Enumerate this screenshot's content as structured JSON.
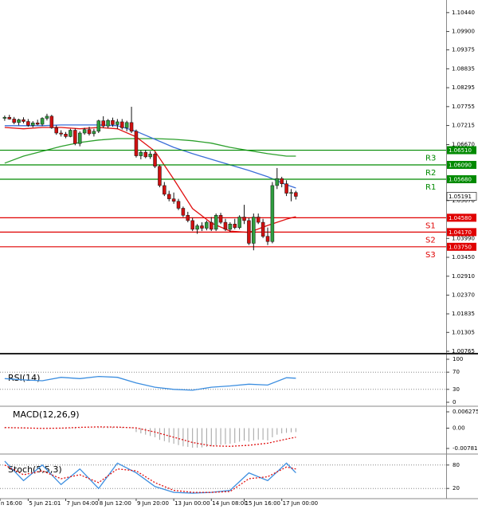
{
  "chart_data": [
    {
      "type": "candlestick",
      "xlim": [
        -1,
        94
      ],
      "xticks": [
        {
          "value": -1,
          "label": "n 16:00"
        },
        {
          "value": 5,
          "label": "5 Jun 21:01"
        },
        {
          "value": 13,
          "label": "7 Jun 04:00"
        },
        {
          "value": 20,
          "label": "8 Jun 12:00"
        },
        {
          "value": 28,
          "label": "9 Jun 20:00"
        },
        {
          "value": 36,
          "label": "13 Jun 00:00"
        },
        {
          "value": 44,
          "label": "14 Jun 08:00"
        },
        {
          "value": 51,
          "label": "15 Jun 16:00"
        },
        {
          "value": 59,
          "label": "17 Jun 00:00"
        }
      ],
      "ylim": [
        1.0072,
        1.108
      ],
      "yticks": [
        {
          "value": 1.1044,
          "label": "1.10440"
        },
        {
          "value": 1.099,
          "label": "1.09900"
        },
        {
          "value": 1.09375,
          "label": "1.09375"
        },
        {
          "value": 1.08835,
          "label": "1.08835"
        },
        {
          "value": 1.08295,
          "label": "1.08295"
        },
        {
          "value": 1.07755,
          "label": "1.07755"
        },
        {
          "value": 1.07215,
          "label": "1.07215"
        },
        {
          "value": 1.0667,
          "label": "1.06670"
        },
        {
          "value": 1.0507,
          "label": "1.05070"
        },
        {
          "value": 1.0399,
          "label": "1.03990"
        },
        {
          "value": 1.0345,
          "label": "1.03450"
        },
        {
          "value": 1.0291,
          "label": "1.02910"
        },
        {
          "value": 1.0237,
          "label": "1.02370"
        },
        {
          "value": 1.01835,
          "label": "1.01835"
        },
        {
          "value": 1.01305,
          "label": "1.01305"
        },
        {
          "value": 1.00765,
          "label": "1.00765"
        }
      ],
      "up_color": "#2e9e3e",
      "down_color": "#d01010",
      "open": [
        1.0742,
        1.0745,
        1.074,
        1.073,
        1.0738,
        1.0733,
        1.0722,
        1.0729,
        1.0725,
        1.0742,
        1.0748,
        1.0715,
        1.07,
        1.0697,
        1.069,
        1.0708,
        1.067,
        1.07,
        1.071,
        1.0698,
        1.0705,
        1.0735,
        1.072,
        1.0736,
        1.0724,
        1.0732,
        1.0715,
        1.073,
        1.0705,
        1.0635,
        1.0645,
        1.0632,
        1.064,
        1.0605,
        1.055,
        1.0525,
        1.0512,
        1.0505,
        1.0485,
        1.0465,
        1.045,
        1.0425,
        1.0435,
        1.0428,
        1.0445,
        1.0425,
        1.0465,
        1.0445,
        1.0425,
        1.044,
        1.043,
        1.046,
        1.045,
        1.0385,
        1.046,
        1.0445,
        1.0405,
        1.039,
        1.055,
        1.057,
        1.0555,
        1.0528,
        1.053
      ],
      "high": [
        1.075,
        1.0752,
        1.0746,
        1.0741,
        1.0745,
        1.074,
        1.0734,
        1.0738,
        1.0745,
        1.0755,
        1.0752,
        1.0722,
        1.0708,
        1.0703,
        1.0712,
        1.0713,
        1.0705,
        1.0715,
        1.0718,
        1.0712,
        1.0738,
        1.0748,
        1.074,
        1.0744,
        1.074,
        1.074,
        1.0735,
        1.0775,
        1.071,
        1.065,
        1.0652,
        1.0648,
        1.0645,
        1.061,
        1.056,
        1.0535,
        1.053,
        1.0512,
        1.049,
        1.0475,
        1.0458,
        1.044,
        1.0445,
        1.045,
        1.046,
        1.047,
        1.0472,
        1.0455,
        1.0445,
        1.0455,
        1.0465,
        1.0495,
        1.0458,
        1.047,
        1.047,
        1.0455,
        1.043,
        1.056,
        1.06,
        1.0575,
        1.0565,
        1.054,
        1.0535
      ],
      "low": [
        1.0735,
        1.0738,
        1.0725,
        1.0722,
        1.0728,
        1.0718,
        1.0716,
        1.0722,
        1.072,
        1.0736,
        1.0712,
        1.0695,
        1.069,
        1.0685,
        1.0688,
        1.0665,
        1.0662,
        1.0695,
        1.0693,
        1.069,
        1.07,
        1.0715,
        1.0714,
        1.0718,
        1.0712,
        1.071,
        1.0705,
        1.07,
        1.063,
        1.0625,
        1.0628,
        1.0626,
        1.06,
        1.0545,
        1.052,
        1.0505,
        1.0498,
        1.048,
        1.046,
        1.0445,
        1.042,
        1.0412,
        1.042,
        1.0422,
        1.042,
        1.042,
        1.044,
        1.042,
        1.0418,
        1.0425,
        1.0425,
        1.044,
        1.038,
        1.0365,
        1.044,
        1.04,
        1.038,
        1.0385,
        1.054,
        1.0545,
        1.052,
        1.0505,
        1.051
      ],
      "close": [
        1.0745,
        1.074,
        1.073,
        1.0738,
        1.0733,
        1.0722,
        1.0729,
        1.0725,
        1.0742,
        1.0748,
        1.0715,
        1.07,
        1.0697,
        1.069,
        1.0708,
        1.067,
        1.07,
        1.071,
        1.0698,
        1.0705,
        1.0735,
        1.072,
        1.0736,
        1.0724,
        1.0732,
        1.0715,
        1.073,
        1.0705,
        1.0635,
        1.0645,
        1.0632,
        1.064,
        1.0605,
        1.055,
        1.0525,
        1.0512,
        1.0505,
        1.0485,
        1.0465,
        1.045,
        1.0425,
        1.0435,
        1.0428,
        1.0445,
        1.0425,
        1.0465,
        1.0445,
        1.0425,
        1.044,
        1.043,
        1.046,
        1.045,
        1.0385,
        1.046,
        1.0445,
        1.0405,
        1.039,
        1.055,
        1.057,
        1.0555,
        1.0528,
        1.053,
        1.05191
      ],
      "series": [
        {
          "color": "#2ca02c",
          "x": [
            0,
            4,
            8,
            12,
            16,
            20,
            24,
            28,
            32,
            36,
            40,
            44,
            48,
            52,
            56,
            60,
            62
          ],
          "values": [
            1.0614,
            1.0634,
            1.0648,
            1.0662,
            1.0673,
            1.068,
            1.0684,
            1.0684,
            1.0684,
            1.0682,
            1.0678,
            1.0671,
            1.0659,
            1.065,
            1.0641,
            1.0634,
            1.0634
          ]
        },
        {
          "color": "#3c6fd8",
          "x": [
            0,
            4,
            8,
            12,
            16,
            20,
            24,
            28,
            32,
            36,
            40,
            44,
            48,
            52,
            56,
            60,
            62
          ],
          "values": [
            1.0721,
            1.0721,
            1.0721,
            1.0723,
            1.0723,
            1.0723,
            1.0721,
            1.0705,
            1.0682,
            1.0659,
            1.0641,
            1.0625,
            1.0609,
            1.0593,
            1.0575,
            1.0552,
            1.0543
          ]
        },
        {
          "color": "#e01010",
          "x": [
            0,
            4,
            8,
            12,
            16,
            20,
            24,
            28,
            32,
            36,
            40,
            44,
            48,
            52,
            56,
            60,
            62
          ],
          "values": [
            1.0716,
            1.0712,
            1.0716,
            1.0716,
            1.0712,
            1.0716,
            1.0712,
            1.0689,
            1.0648,
            1.0568,
            1.0484,
            1.0443,
            1.042,
            1.0416,
            1.0436,
            1.0454,
            1.0461
          ]
        }
      ],
      "levels": [
        {
          "name": "R3",
          "value": 1.0651,
          "label": "1.06510",
          "color": "#008a00"
        },
        {
          "name": "R2",
          "value": 1.0609,
          "label": "1.06090",
          "color": "#008a00"
        },
        {
          "name": "R1",
          "value": 1.0568,
          "label": "1.05680",
          "color": "#008a00"
        },
        {
          "name": "S1",
          "value": 1.0458,
          "label": "1.04580",
          "color": "#e00000"
        },
        {
          "name": "S2",
          "value": 1.0417,
          "label": "1.04170",
          "color": "#e00000"
        },
        {
          "name": "S3",
          "value": 1.0375,
          "label": "1.03750",
          "color": "#e00000"
        }
      ],
      "last_price": {
        "value": 1.05191,
        "label": "1.05191"
      }
    },
    {
      "type": "line",
      "title": "RSI(14)",
      "ylim": [
        0,
        100
      ],
      "yticks": [
        100,
        70,
        30,
        0
      ],
      "grid": true,
      "color": "#3c8ee0",
      "x": [
        0,
        4,
        8,
        12,
        16,
        20,
        24,
        28,
        32,
        36,
        40,
        44,
        48,
        52,
        56,
        60,
        62
      ],
      "values": [
        55,
        52,
        50,
        58,
        55,
        60,
        58,
        45,
        35,
        30,
        28,
        35,
        38,
        42,
        40,
        57,
        56
      ]
    },
    {
      "type": "macd",
      "title": "MACD(12,26,9)",
      "ylim": [
        -0.007812,
        0.006275
      ],
      "yticks": [
        0.006275,
        {
          "value": 0,
          "label": "0.00"
        },
        -0.007812
      ],
      "hist_color": "#a0a0a0",
      "values": [
        0.0003,
        0.0004,
        0.0003,
        0.0002,
        0.0002,
        0.0001,
        0,
        0,
        0.0001,
        0.0002,
        0.0001,
        -0.0001,
        -0.0002,
        -0.0003,
        -0.0002,
        -0.0003,
        -0.0002,
        0,
        0.0001,
        0.0001,
        0.0003,
        0.0004,
        0.0004,
        0.0005,
        0.0005,
        0.0004,
        0.0004,
        0.0003,
        -0.0015,
        -0.002,
        -0.0025,
        -0.003,
        -0.0035,
        -0.0045,
        -0.005,
        -0.0055,
        -0.006,
        -0.0065,
        -0.007,
        -0.0072,
        -0.0075,
        -0.0075,
        -0.0074,
        -0.0072,
        -0.007,
        -0.0066,
        -0.0064,
        -0.0062,
        -0.006,
        -0.0057,
        -0.0052,
        -0.0048,
        -0.0052,
        -0.0047,
        -0.0044,
        -0.0045,
        -0.0047,
        -0.0035,
        -0.0025,
        -0.002,
        -0.0018,
        -0.0016,
        -0.0015
      ],
      "signal": {
        "color": "#e01010",
        "x": [
          0,
          4,
          8,
          12,
          16,
          20,
          24,
          28,
          32,
          36,
          40,
          44,
          48,
          52,
          56,
          60,
          62
        ],
        "values": [
          0.0002,
          0.0001,
          -0.0001,
          0,
          0.0003,
          0.0005,
          0.0004,
          0.0001,
          -0.0015,
          -0.0035,
          -0.0055,
          -0.0068,
          -0.007,
          -0.0066,
          -0.0058,
          -0.0042,
          -0.0035
        ]
      }
    },
    {
      "type": "stochastic",
      "title": "Stoch(5,5,3)",
      "ylim": [
        0,
        100
      ],
      "yticks": [
        80,
        20
      ],
      "grid": true,
      "series": [
        {
          "color": "#3c8ee0",
          "x": [
            0,
            4,
            8,
            12,
            16,
            20,
            24,
            28,
            32,
            36,
            40,
            44,
            48,
            52,
            56,
            60,
            62
          ],
          "values": [
            90,
            40,
            80,
            30,
            70,
            20,
            85,
            60,
            25,
            10,
            8,
            10,
            15,
            60,
            40,
            85,
            60
          ]
        },
        {
          "color": "#e01010",
          "dash": true,
          "x": [
            0,
            4,
            8,
            12,
            16,
            20,
            24,
            28,
            32,
            36,
            40,
            44,
            48,
            52,
            56,
            60,
            62
          ],
          "values": [
            80,
            55,
            65,
            45,
            55,
            35,
            70,
            65,
            35,
            15,
            10,
            10,
            12,
            45,
            50,
            75,
            70
          ]
        }
      ]
    }
  ]
}
